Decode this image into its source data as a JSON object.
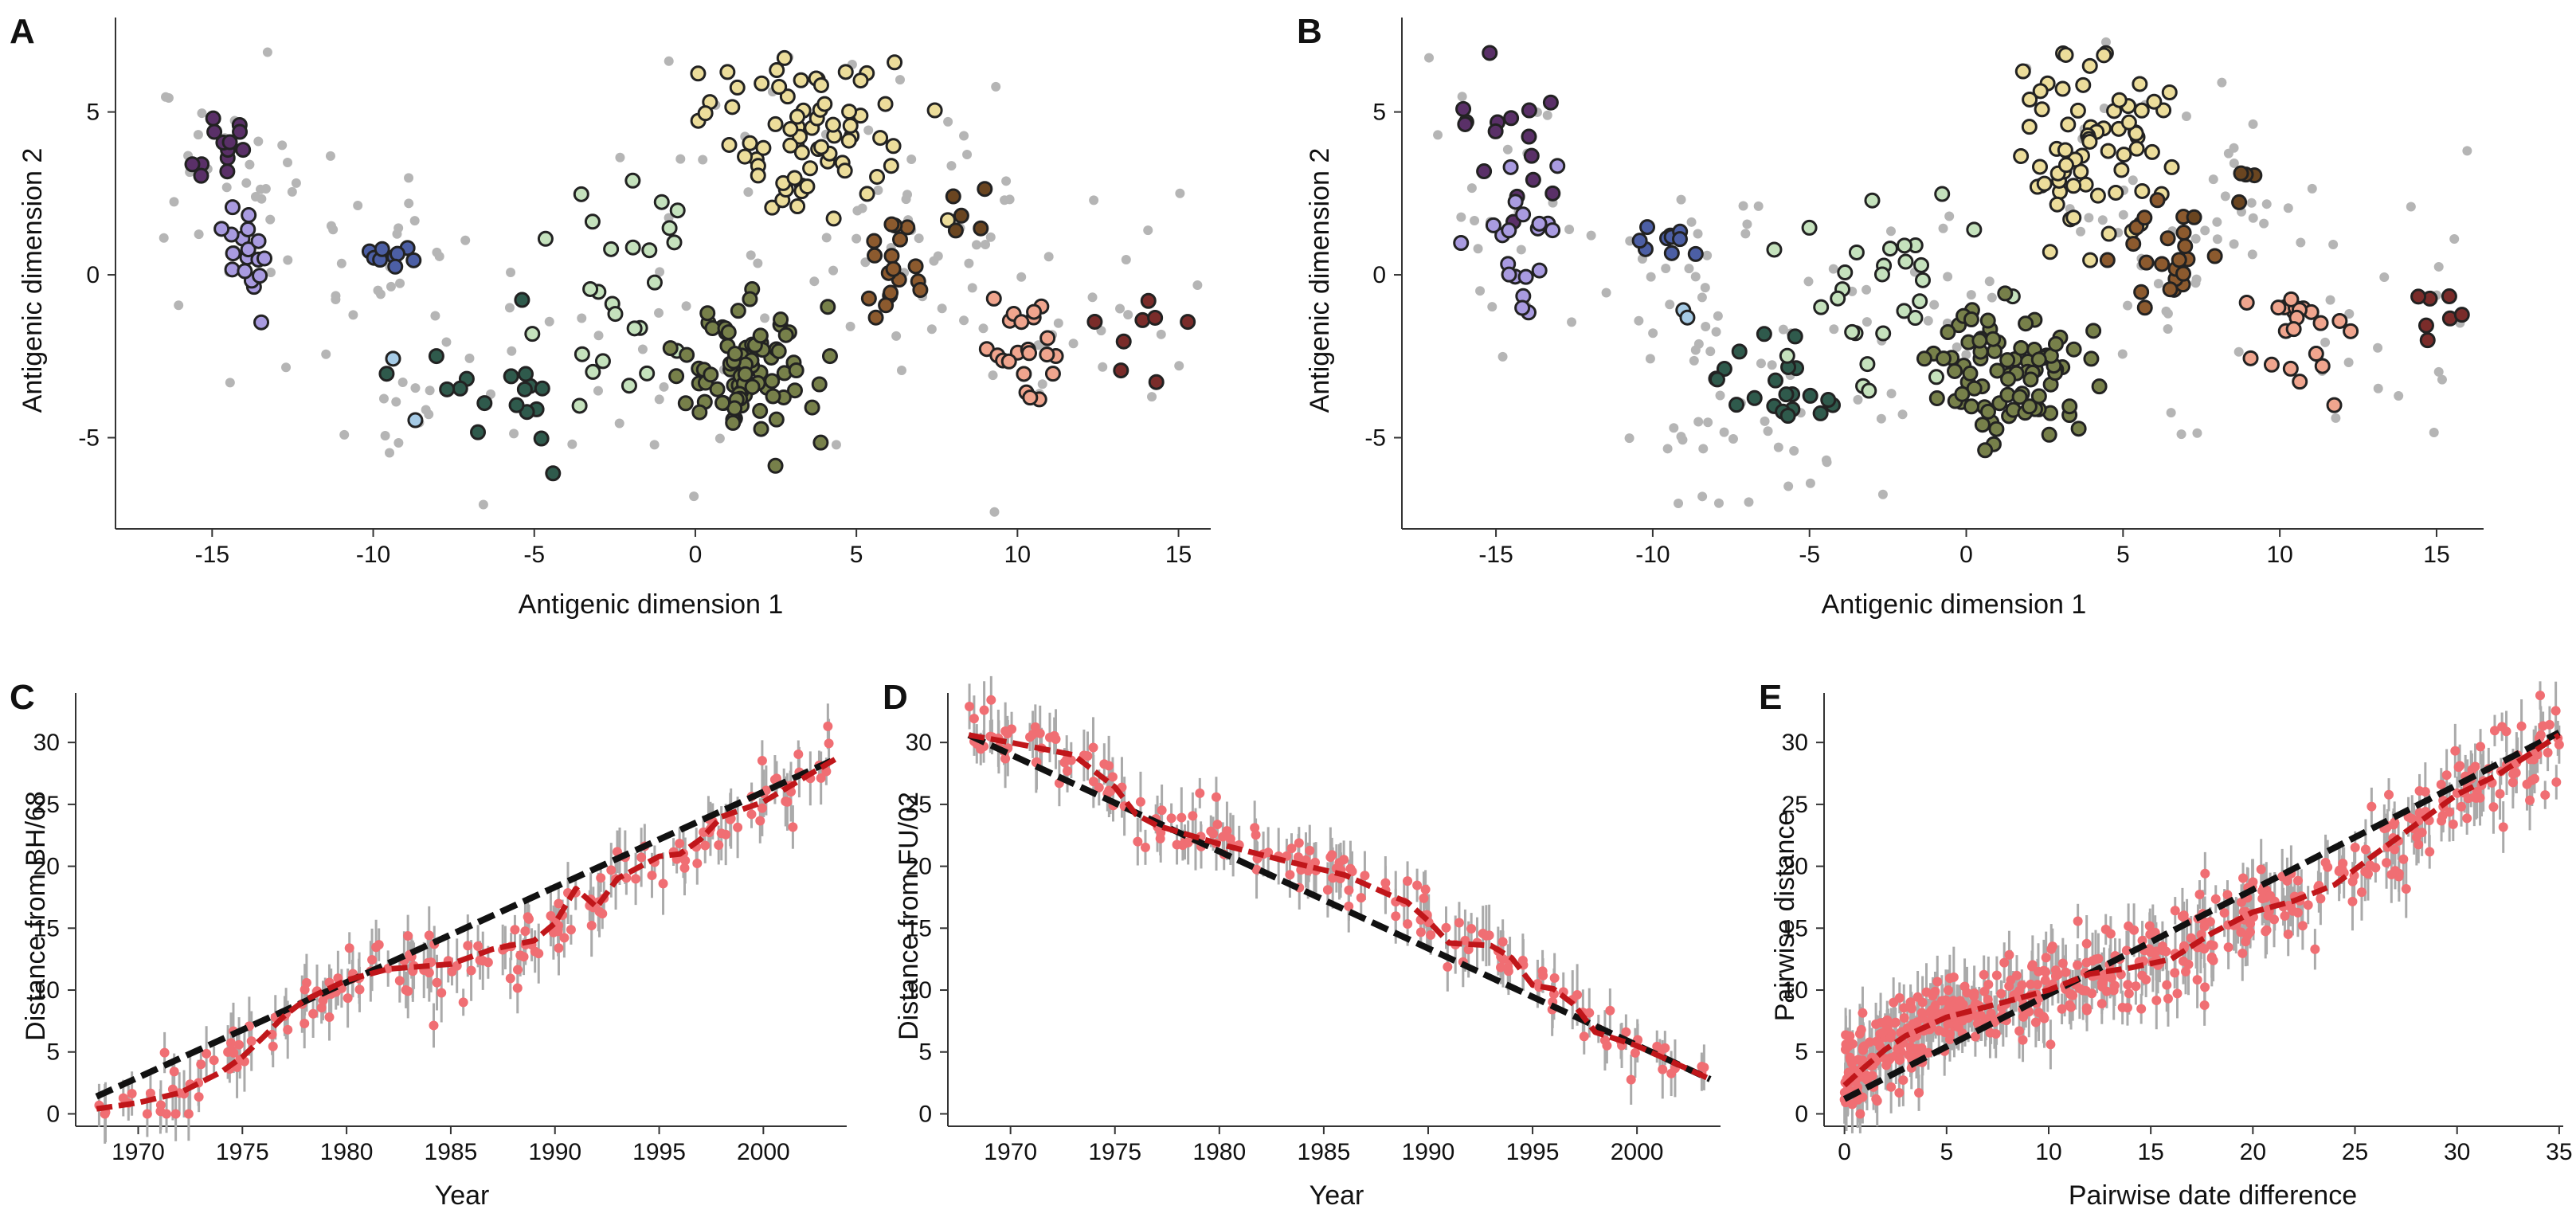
{
  "chart_data": [
    {
      "id": "A",
      "type": "scatter",
      "panel_label": "A",
      "xlabel": "Antigenic dimension 1",
      "ylabel": "Antigenic dimension 2",
      "xlim": [
        -18,
        16
      ],
      "ylim": [
        -7.8,
        7.9
      ],
      "xticks": [
        -15,
        -10,
        -5,
        0,
        5,
        10,
        15
      ],
      "xtick_labels": [
        "-15",
        "-10",
        "-5",
        "0",
        "5",
        "10",
        "15"
      ],
      "yticks": [
        -5,
        0,
        5
      ],
      "ytick_labels": [
        "-5",
        "0",
        "5"
      ],
      "colors": {
        "grey": "#b5b5b5"
      },
      "clusters": [
        {
          "fill": "#5a3068",
          "cx": -14.8,
          "cy": 3.9,
          "sx": 0.6,
          "sy": 0.7,
          "n": 13,
          "seed": 11
        },
        {
          "fill": "#a99be0",
          "cx": -13.8,
          "cy": 0.7,
          "sx": 0.5,
          "sy": 0.7,
          "n": 18,
          "seed": 12
        },
        {
          "fill": "#4c5fa5",
          "cx": -9.3,
          "cy": 0.6,
          "sx": 0.5,
          "sy": 0.25,
          "n": 9,
          "seed": 13
        },
        {
          "fill": "#a6cbe6",
          "cx": -8.9,
          "cy": -3.1,
          "sx": 0.3,
          "sy": 1.0,
          "n": 2,
          "seed": 14
        },
        {
          "fill": "#2f5a4c",
          "cx": -5.8,
          "cy": -3.6,
          "sx": 1.2,
          "sy": 1.1,
          "n": 18,
          "seed": 15
        },
        {
          "fill": "#c5e2bd",
          "cx": -2.3,
          "cy": -0.8,
          "sx": 1.3,
          "sy": 2.0,
          "n": 26,
          "seed": 16
        },
        {
          "fill": "#77804a",
          "cx": 1.5,
          "cy": -3.1,
          "sx": 1.0,
          "sy": 1.0,
          "n": 85,
          "seed": 17
        },
        {
          "fill": "#ecdd9b",
          "cx": 3.5,
          "cy": 4.3,
          "sx": 1.5,
          "sy": 1.3,
          "n": 72,
          "seed": 18
        },
        {
          "fill": "#8c5a2e",
          "cx": 6.0,
          "cy": 0.6,
          "sx": 0.5,
          "sy": 0.8,
          "n": 18,
          "seed": 19
        },
        {
          "fill": "#6a4520",
          "cx": 8.3,
          "cy": 2.2,
          "sx": 0.4,
          "sy": 0.8,
          "n": 5,
          "seed": 20
        },
        {
          "fill": "#f0a58e",
          "cx": 10.2,
          "cy": -2.3,
          "sx": 0.7,
          "sy": 0.9,
          "n": 22,
          "seed": 21
        },
        {
          "fill": "#7a2c2a",
          "cx": 13.5,
          "cy": -1.6,
          "sx": 0.8,
          "sy": 0.9,
          "n": 8,
          "seed": 22
        }
      ],
      "grey_points": {
        "n": 200,
        "seed": 23
      }
    },
    {
      "id": "B",
      "type": "scatter",
      "panel_label": "B",
      "xlabel": "Antigenic dimension 1",
      "ylabel": "Antigenic dimension 2",
      "xlim": [
        -18,
        16.5
      ],
      "ylim": [
        -7.8,
        7.9
      ],
      "xticks": [
        -15,
        -10,
        -5,
        0,
        5,
        10,
        15
      ],
      "xtick_labels": [
        "-15",
        "-10",
        "-5",
        "0",
        "5",
        "10",
        "15"
      ],
      "yticks": [
        -5,
        0,
        5
      ],
      "ytick_labels": [
        "-5",
        "0",
        "5"
      ],
      "colors": {
        "grey": "#b5b5b5"
      },
      "clusters": [
        {
          "fill": "#5a3068",
          "cx": -14.8,
          "cy": 4.0,
          "sx": 1.1,
          "sy": 1.3,
          "n": 16,
          "seed": 31
        },
        {
          "fill": "#a99be0",
          "cx": -13.9,
          "cy": 1.0,
          "sx": 0.8,
          "sy": 1.2,
          "n": 20,
          "seed": 32
        },
        {
          "fill": "#4c5fa5",
          "cx": -9.3,
          "cy": 0.9,
          "sx": 0.6,
          "sy": 0.3,
          "n": 10,
          "seed": 33
        },
        {
          "fill": "#a6cbe6",
          "cx": -8.7,
          "cy": -3.2,
          "sx": 0.3,
          "sy": 1.1,
          "n": 3,
          "seed": 34
        },
        {
          "fill": "#2f5a4c",
          "cx": -5.8,
          "cy": -3.7,
          "sx": 1.2,
          "sy": 1.2,
          "n": 20,
          "seed": 35
        },
        {
          "fill": "#c5e2bd",
          "cx": -2.6,
          "cy": -0.4,
          "sx": 1.5,
          "sy": 1.5,
          "n": 30,
          "seed": 36
        },
        {
          "fill": "#77804a",
          "cx": 1.5,
          "cy": -3.0,
          "sx": 1.2,
          "sy": 1.0,
          "n": 85,
          "seed": 37
        },
        {
          "fill": "#ecdd9b",
          "cx": 3.9,
          "cy": 4.3,
          "sx": 1.3,
          "sy": 1.4,
          "n": 70,
          "seed": 38
        },
        {
          "fill": "#8c5a2e",
          "cx": 6.4,
          "cy": 0.6,
          "sx": 0.8,
          "sy": 0.8,
          "n": 22,
          "seed": 39
        },
        {
          "fill": "#6a4520",
          "cx": 8.5,
          "cy": 2.0,
          "sx": 0.5,
          "sy": 1.0,
          "n": 5,
          "seed": 40
        },
        {
          "fill": "#f0a58e",
          "cx": 10.6,
          "cy": -1.9,
          "sx": 1.0,
          "sy": 0.9,
          "n": 22,
          "seed": 41
        },
        {
          "fill": "#7a2c2a",
          "cx": 14.3,
          "cy": -1.5,
          "sx": 0.8,
          "sy": 0.9,
          "n": 7,
          "seed": 42
        }
      ],
      "grey_points": {
        "n": 200,
        "seed": 43
      }
    },
    {
      "id": "C",
      "type": "scatter",
      "panel_label": "C",
      "xlabel": "Year",
      "ylabel": "Distance from BH/68",
      "xlim": [
        1967,
        2004
      ],
      "ylim": [
        -1,
        34
      ],
      "xticks": [
        1970,
        1975,
        1980,
        1985,
        1990,
        1995,
        2000
      ],
      "xtick_labels": [
        "1970",
        "1975",
        "1980",
        "1985",
        "1990",
        "1995",
        "2000"
      ],
      "yticks": [
        0,
        5,
        10,
        15,
        20,
        25,
        30
      ],
      "ytick_labels": [
        "0",
        "5",
        "10",
        "15",
        "20",
        "25",
        "30"
      ],
      "colors": {
        "point": "#f06e73",
        "errorbar": "#aaaaaa",
        "trend": "#111111",
        "fit": "#c0161a"
      },
      "trend": {
        "x": [
          1968,
          2003.5
        ],
        "y": [
          1.4,
          28.7
        ]
      },
      "fit_curve": {
        "x": [
          1968,
          1970,
          1972,
          1974,
          1975,
          1976,
          1977,
          1978,
          1980,
          1982,
          1985,
          1987,
          1989,
          1990,
          1991,
          1992,
          1993,
          1995,
          1996,
          1997,
          1998,
          2000,
          2003.5
        ],
        "y": [
          0.4,
          0.9,
          1.7,
          3.4,
          4.6,
          6.2,
          7.9,
          9.2,
          10.8,
          11.7,
          12.1,
          13.3,
          14.0,
          15.4,
          18.2,
          16.7,
          19.0,
          20.8,
          21.0,
          22.2,
          24.0,
          25.2,
          28.7
        ]
      },
      "points": {
        "n": 190,
        "x_range": [
          1968,
          2003.3
        ],
        "noise": 1.6,
        "err": 1.8,
        "seed": 51
      }
    },
    {
      "id": "D",
      "type": "scatter",
      "panel_label": "D",
      "xlabel": "Year",
      "ylabel": "Distance from FU/02",
      "xlim": [
        1967,
        2004
      ],
      "ylim": [
        -1,
        34
      ],
      "xticks": [
        1970,
        1975,
        1980,
        1985,
        1990,
        1995,
        2000
      ],
      "xtick_labels": [
        "1970",
        "1975",
        "1980",
        "1985",
        "1990",
        "1995",
        "2000"
      ],
      "yticks": [
        0,
        5,
        10,
        15,
        20,
        25,
        30
      ],
      "ytick_labels": [
        "0",
        "5",
        "10",
        "15",
        "20",
        "25",
        "30"
      ],
      "colors": {
        "point": "#f06e73",
        "errorbar": "#aaaaaa",
        "trend": "#111111",
        "fit": "#c0161a"
      },
      "trend": {
        "x": [
          1968,
          2003.5
        ],
        "y": [
          30.6,
          2.8
        ]
      },
      "fit_curve": {
        "x": [
          1968,
          1970,
          1973,
          1975,
          1976,
          1977,
          1980,
          1983,
          1986,
          1988,
          1989,
          1990,
          1991,
          1993,
          1994,
          1995,
          1996,
          1997,
          1998,
          2000,
          2003.5
        ],
        "y": [
          30.6,
          30.0,
          29.0,
          26.4,
          24.2,
          23.3,
          21.8,
          20.5,
          19.3,
          17.8,
          17.1,
          15.6,
          13.8,
          13.6,
          12.6,
          10.4,
          10.1,
          8.8,
          6.6,
          5.5,
          2.8
        ]
      },
      "points": {
        "n": 190,
        "x_range": [
          1968,
          2003.3
        ],
        "noise": 1.4,
        "err": 1.8,
        "seed": 52
      }
    },
    {
      "id": "E",
      "type": "scatter",
      "panel_label": "E",
      "xlabel": "Pairwise date difference",
      "ylabel": "Pairwise distance",
      "xlim": [
        -1,
        35.2
      ],
      "ylim": [
        -1,
        34
      ],
      "xticks": [
        0,
        5,
        10,
        15,
        20,
        25,
        30,
        35
      ],
      "xtick_labels": [
        "0",
        "5",
        "10",
        "15",
        "20",
        "25",
        "30",
        "35"
      ],
      "yticks": [
        0,
        5,
        10,
        15,
        20,
        25,
        30
      ],
      "ytick_labels": [
        "0",
        "5",
        "10",
        "15",
        "20",
        "25",
        "30"
      ],
      "colors": {
        "point": "#f06e73",
        "errorbar": "#aaaaaa",
        "trend": "#111111",
        "fit": "#c0161a"
      },
      "trend": {
        "x": [
          0,
          35
        ],
        "y": [
          1.2,
          30.8
        ]
      },
      "fit_curve": {
        "x": [
          0,
          1,
          2,
          3,
          5,
          8,
          10,
          12,
          14,
          16,
          18,
          20,
          22,
          24,
          26,
          28,
          30,
          32,
          35
        ],
        "y": [
          2.3,
          3.8,
          5.2,
          6.3,
          7.8,
          9.1,
          10.0,
          11.3,
          11.8,
          12.5,
          14.6,
          16.3,
          17.2,
          18.5,
          21.0,
          23.4,
          25.8,
          27.4,
          30.6
        ]
      },
      "points": {
        "n": 560,
        "x_range": [
          0,
          35
        ],
        "noise": 2.2,
        "err": 1.8,
        "seed": 53
      }
    }
  ]
}
